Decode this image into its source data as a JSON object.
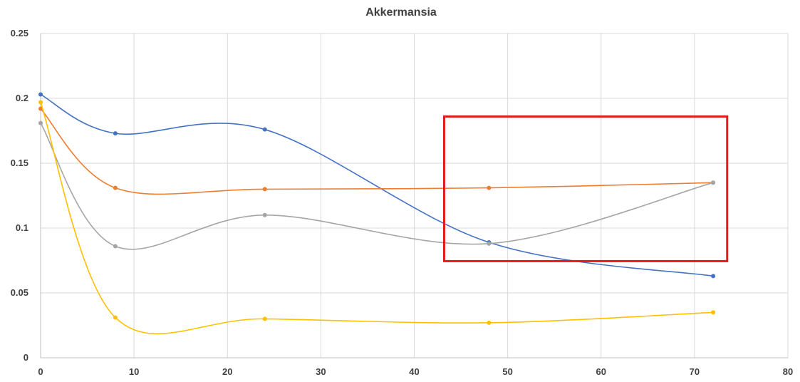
{
  "chart_data": {
    "type": "line",
    "title": "Akkermansia",
    "xlabel": "",
    "ylabel": "",
    "xlim": [
      0,
      80
    ],
    "ylim": [
      0,
      0.25
    ],
    "x_ticks": [
      "0",
      "10",
      "20",
      "30",
      "40",
      "50",
      "60",
      "70",
      "80"
    ],
    "y_ticks": [
      "0",
      "0.05",
      "0.1",
      "0.15",
      "0.2",
      "0.25"
    ],
    "grid": true,
    "legend": "none",
    "smoothed": true,
    "x": [
      0,
      8,
      24,
      48,
      72
    ],
    "series": [
      {
        "color": "#4472c4",
        "values": [
          0.203,
          0.173,
          0.176,
          0.089,
          0.063
        ]
      },
      {
        "color": "#ed7d31",
        "values": [
          0.192,
          0.131,
          0.13,
          0.131,
          0.135
        ]
      },
      {
        "color": "#a5a5a5",
        "values": [
          0.181,
          0.086,
          0.11,
          0.088,
          0.135
        ]
      },
      {
        "color": "#ffc000",
        "values": [
          0.197,
          0.031,
          0.03,
          0.027,
          0.035
        ]
      }
    ],
    "annotations": [
      {
        "type": "rectangle",
        "color": "#e41a1c",
        "x_range": [
          43.2,
          73.5
        ],
        "y_range": [
          0.0745,
          0.186
        ]
      }
    ]
  }
}
